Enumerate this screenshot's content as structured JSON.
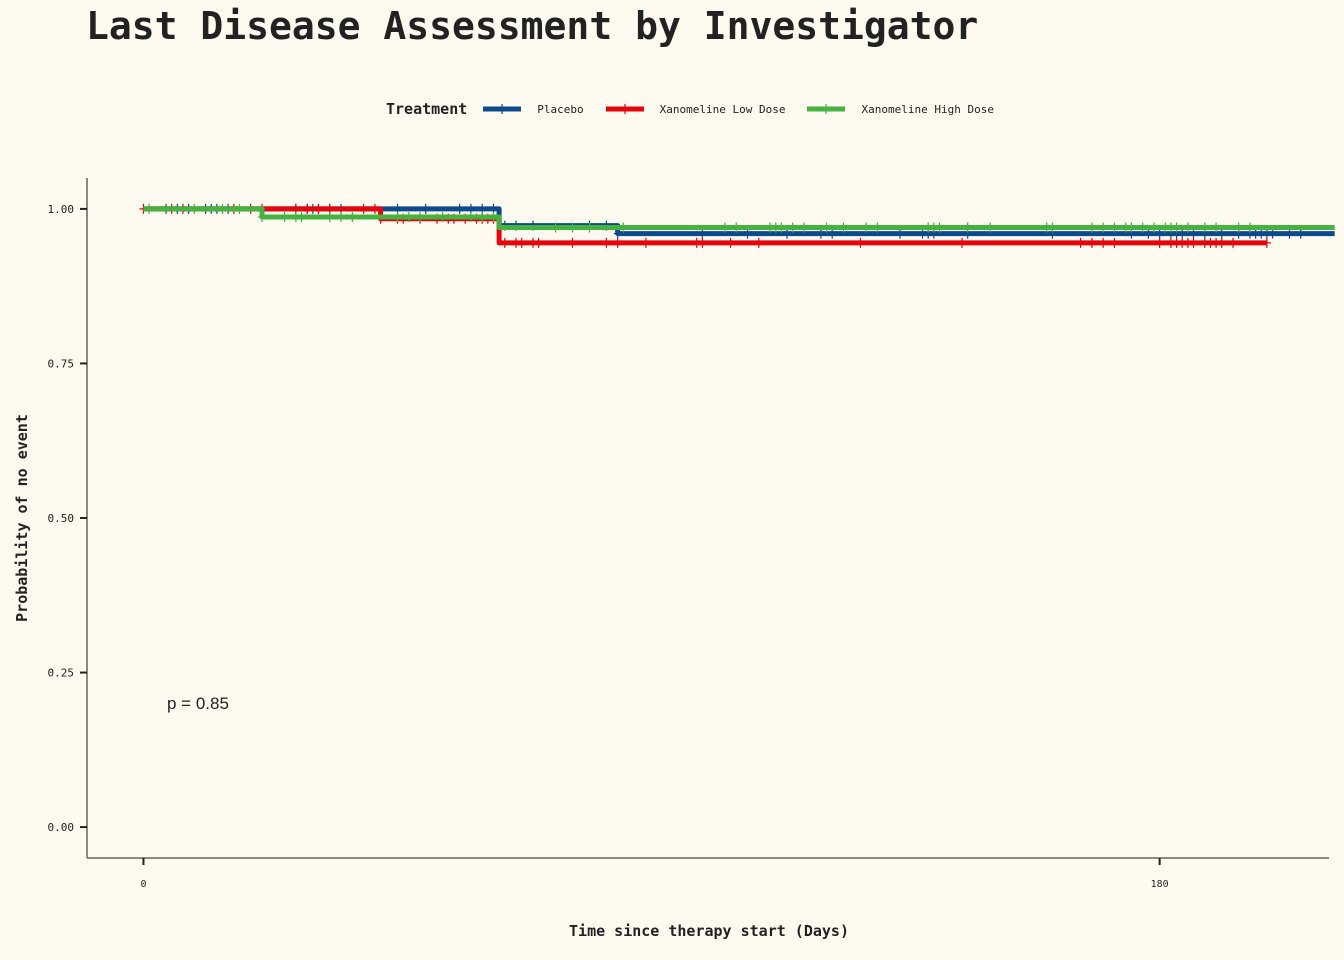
{
  "chart_data": {
    "type": "line",
    "title": "Last Disease Assessment by Investigator",
    "xlabel": "Time since therapy start (Days)",
    "ylabel": "Probability of no event",
    "xlim": [
      -10,
      210
    ],
    "ylim": [
      -0.05,
      1.05
    ],
    "x_ticks": [
      0,
      180
    ],
    "x_tick_labels": [
      "0",
      "180"
    ],
    "y_ticks": [
      0,
      0.25,
      0.5,
      0.75,
      1
    ],
    "y_tick_labels": [
      "0.00",
      "0.25",
      "0.50",
      "0.75",
      "1.00"
    ],
    "grid": false,
    "legend": {
      "title": "Treatment",
      "placement": "top"
    },
    "annotation": "p = 0.85",
    "step": true,
    "series": [
      {
        "name": "Placebo",
        "color": "#0d4a8c",
        "steps": [
          [
            0,
            1.0
          ],
          [
            63,
            0.973
          ],
          [
            84,
            0.96
          ],
          [
            211,
            0.96
          ]
        ],
        "censor_times": [
          4,
          6,
          8,
          11,
          12,
          13,
          15,
          27,
          29,
          30,
          31,
          33,
          35,
          45,
          50,
          56,
          58,
          60,
          62,
          64,
          66,
          69,
          79,
          82,
          84,
          99,
          107,
          114,
          120,
          122,
          134,
          138,
          139,
          140,
          146,
          161,
          175,
          178,
          180,
          182,
          183,
          184,
          186,
          188,
          191,
          194,
          196,
          197,
          198,
          199,
          200,
          203,
          205
        ]
      },
      {
        "name": "Xanomeline Low Dose",
        "color": "#e3050c",
        "steps": [
          [
            0,
            1.0
          ],
          [
            42,
            0.984
          ],
          [
            63,
            0.945
          ],
          [
            199,
            0.945
          ]
        ],
        "censor_times": [
          0,
          5,
          7,
          16,
          19,
          21,
          27,
          29,
          31,
          33,
          39,
          41,
          42,
          45,
          46,
          49,
          52,
          54,
          55,
          57,
          59,
          60,
          61,
          62,
          64,
          66,
          67,
          69,
          70,
          76,
          82,
          84,
          89,
          98,
          99,
          104,
          109,
          127,
          145,
          166,
          168,
          170,
          172,
          180,
          182,
          183,
          184,
          185,
          186,
          188,
          189,
          190,
          191,
          193,
          199
        ]
      },
      {
        "name": "Xanomeline High Dose",
        "color": "#46b23f",
        "steps": [
          [
            0,
            1.0
          ],
          [
            21,
            0.987
          ],
          [
            63,
            0.97
          ],
          [
            211,
            0.97
          ]
        ],
        "censor_times": [
          1,
          9,
          14,
          17,
          21,
          25,
          27,
          28,
          33,
          35,
          37,
          45,
          47,
          49,
          53,
          58,
          60,
          62,
          73,
          76,
          79,
          85,
          103,
          105,
          111,
          112,
          113,
          115,
          117,
          121,
          124,
          128,
          130,
          139,
          140,
          141,
          146,
          150,
          160,
          161,
          168,
          170,
          172,
          174,
          175,
          177,
          179,
          181,
          182,
          183,
          185,
          188,
          190,
          194,
          196
        ]
      }
    ]
  }
}
